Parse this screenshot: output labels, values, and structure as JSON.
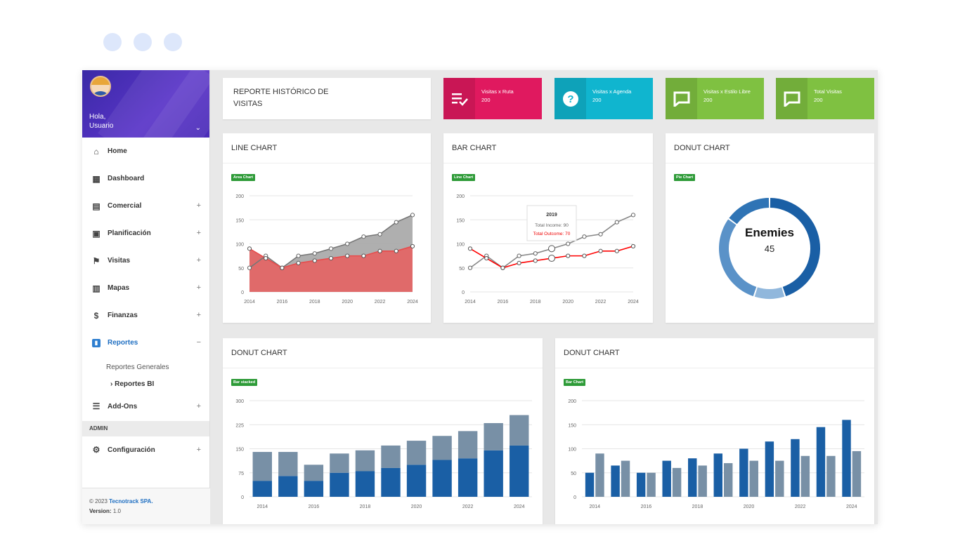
{
  "window": {
    "controls": [
      "dot-1",
      "dot-2",
      "dot-3"
    ]
  },
  "sidebar": {
    "greeting": "Hola,",
    "user": "Usuario",
    "items": [
      {
        "label": "Home",
        "icon": "home-icon",
        "glyph": "⌂",
        "expandable": false
      },
      {
        "label": "Dashboard",
        "icon": "dashboard-icon",
        "glyph": "▦",
        "expandable": false
      },
      {
        "label": "Comercial",
        "icon": "briefcase-icon",
        "glyph": "▤",
        "expandable": true
      },
      {
        "label": "Planificación",
        "icon": "calendar-icon",
        "glyph": "▣",
        "expandable": true
      },
      {
        "label": "Visitas",
        "icon": "flag-icon",
        "glyph": "⚑",
        "expandable": true
      },
      {
        "label": "Mapas",
        "icon": "map-icon",
        "glyph": "▥",
        "expandable": true
      },
      {
        "label": "Finanzas",
        "icon": "dollar-icon",
        "glyph": "$",
        "expandable": true
      },
      {
        "label": "Reportes",
        "icon": "chart-icon",
        "glyph": "▮",
        "expandable": true,
        "active": true
      }
    ],
    "subitems": [
      "Reportes Generales",
      "Reportes BI"
    ],
    "addons": {
      "label": "Add-Ons",
      "icon": "sliders-icon"
    },
    "section": "ADMIN",
    "config": {
      "label": "Configuración",
      "icon": "gear-icon"
    },
    "footer": {
      "copy": "© 2023",
      "company": "Tecnotrack SPA.",
      "version_label": "Version:",
      "version": "1.0"
    }
  },
  "header": {
    "title_line1": "REPORTE HISTÓRICO DE",
    "title_line2": "VISITAS"
  },
  "stats": [
    {
      "label": "Visitas x Ruta",
      "value": "200",
      "color": "#e0195f",
      "icon": "list-check-icon"
    },
    {
      "label": "Visitas x Agenda",
      "value": "200",
      "color": "#10b5cf",
      "icon": "question-icon"
    },
    {
      "label": "Visitas x Estilo Libre",
      "value": "200",
      "color": "#7fc141",
      "icon": "chat-icon"
    },
    {
      "label": "Total Visitas",
      "value": "200",
      "color": "#7fc141",
      "icon": "chat-icon"
    }
  ],
  "panels": {
    "line": {
      "title": "LINE CHART",
      "tag": "Area Chart"
    },
    "bar": {
      "title": "BAR CHART",
      "tag": "Line Chart"
    },
    "donut": {
      "title": "DONUT CHART",
      "tag": "Pie Chart"
    },
    "stacked": {
      "title": "DONUT CHART",
      "tag": "Bar stacked"
    },
    "grouped": {
      "title": "DONUT CHART",
      "tag": "Bar Chart"
    }
  },
  "chart_data": [
    {
      "type": "area",
      "x": [
        2014,
        2015,
        2016,
        2017,
        2018,
        2019,
        2020,
        2021,
        2022,
        2023,
        2024
      ],
      "series": [
        {
          "values": [
            50,
            75,
            50,
            75,
            80,
            90,
            100,
            115,
            120,
            145,
            160
          ],
          "color": "#9e9e9e"
        },
        {
          "values": [
            90,
            70,
            50,
            60,
            65,
            70,
            75,
            75,
            85,
            85,
            95
          ],
          "color": "#e74c4c"
        }
      ],
      "ylim": [
        0,
        200
      ],
      "yticks": [
        0,
        50,
        100,
        150,
        200
      ],
      "xticks": [
        "2014",
        "2016",
        "2018",
        "2020",
        "2022",
        "2024"
      ]
    },
    {
      "type": "line",
      "x": [
        2014,
        2015,
        2016,
        2017,
        2018,
        2019,
        2020,
        2021,
        2022,
        2023,
        2024
      ],
      "series": [
        {
          "values": [
            50,
            75,
            50,
            75,
            80,
            90,
            100,
            115,
            120,
            145,
            160
          ],
          "color": "#888888"
        },
        {
          "values": [
            90,
            70,
            50,
            60,
            65,
            70,
            75,
            75,
            85,
            85,
            95
          ],
          "color": "#ff0000"
        }
      ],
      "ylim": [
        0,
        200
      ],
      "yticks": [
        0,
        50,
        100,
        150,
        200
      ],
      "xticks": [
        "2014",
        "2016",
        "2018",
        "2020",
        "2022",
        "2024"
      ],
      "tooltip": {
        "title": "2019",
        "line1": "Total Income: 90",
        "line2": "Total Outcome: 70"
      }
    },
    {
      "type": "pie",
      "center_label": "Enemies",
      "center_value": "45",
      "slices": [
        {
          "value": 45,
          "color": "#1a5fa5"
        },
        {
          "value": 10,
          "color": "#90b7dc"
        },
        {
          "value": 30,
          "color": "#5a92c8"
        },
        {
          "value": 15,
          "color": "#2f74b5"
        }
      ]
    },
    {
      "type": "bar",
      "stacked": true,
      "x": [
        2014,
        2015,
        2016,
        2017,
        2018,
        2019,
        2020,
        2021,
        2022,
        2023,
        2024
      ],
      "series": [
        {
          "values": [
            50,
            65,
            50,
            75,
            80,
            90,
            100,
            115,
            120,
            145,
            160
          ],
          "color": "#1a5fa5"
        },
        {
          "values": [
            90,
            75,
            50,
            60,
            65,
            70,
            75,
            75,
            85,
            85,
            95
          ],
          "color": "#7890a6"
        }
      ],
      "ylim": [
        0,
        300
      ],
      "yticks": [
        0,
        75,
        150,
        225,
        300
      ],
      "xticks": [
        "2014",
        "2016",
        "2018",
        "2020",
        "2022",
        "2024"
      ]
    },
    {
      "type": "bar",
      "stacked": false,
      "x": [
        2014,
        2015,
        2016,
        2017,
        2018,
        2019,
        2020,
        2021,
        2022,
        2023,
        2024
      ],
      "series": [
        {
          "values": [
            50,
            65,
            50,
            75,
            80,
            90,
            100,
            115,
            120,
            145,
            160
          ],
          "color": "#1a5fa5"
        },
        {
          "values": [
            90,
            75,
            50,
            60,
            65,
            70,
            75,
            75,
            85,
            85,
            95
          ],
          "color": "#7890a6"
        }
      ],
      "ylim": [
        0,
        200
      ],
      "yticks": [
        0,
        50,
        100,
        150,
        200
      ],
      "xticks": [
        "2014",
        "2016",
        "2018",
        "2020",
        "2022",
        "2024"
      ]
    }
  ]
}
